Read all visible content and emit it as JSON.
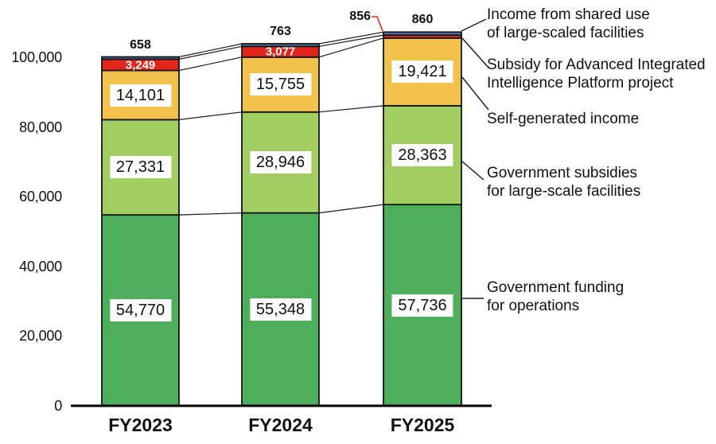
{
  "chart_data": {
    "type": "bar",
    "stacked": true,
    "title": "",
    "xlabel": "",
    "ylabel": "",
    "categories": [
      "FY2023",
      "FY2024",
      "FY2025"
    ],
    "series": [
      {
        "name": "Government funding for operations",
        "color": "#4fae5b",
        "values": [
          54770,
          55348,
          57736
        ]
      },
      {
        "name": "Government subsidies for large-scale facilities",
        "color": "#a2cd63",
        "values": [
          27331,
          28946,
          28363
        ]
      },
      {
        "name": "Self-generated income",
        "color": "#f0c14b",
        "values": [
          14101,
          15755,
          19421
        ]
      },
      {
        "name": "Subsidy for Advanced Integrated Intelligence Platform project",
        "color": "#e3261c",
        "values": [
          3249,
          3077,
          856
        ]
      },
      {
        "name": "Income from shared use of large-scaled facilities",
        "color": "#4b7db9",
        "values": [
          658,
          763,
          860
        ]
      }
    ],
    "totals": [
      100109,
      103889,
      107236
    ],
    "ylim": [
      0,
      110000
    ],
    "yticks": [
      {
        "label": "0",
        "value": 0
      },
      {
        "label": "20,000",
        "value": 20000
      },
      {
        "label": "40,000",
        "value": 40000
      },
      {
        "label": "60,000",
        "value": 60000
      },
      {
        "label": "80,000",
        "value": 80000
      },
      {
        "label": "100,000",
        "value": 100000
      }
    ],
    "grid": false,
    "legend_position": "right"
  },
  "legend": {
    "items": [
      {
        "label": "Income from shared use\nof large-scaled facilities"
      },
      {
        "label": "Subsidy for Advanced Integrated\nIntelligence Platform project"
      },
      {
        "label": "Self-generated income"
      },
      {
        "label": "Government subsidies\nfor large-scale facilities"
      },
      {
        "label": "Government funding\nfor operations"
      }
    ]
  },
  "colors": {
    "axis": "#000000",
    "connector": "#1a1a1a",
    "callout_line": "#e3261c",
    "text": "#111111",
    "label_box_bg": "#ffffff"
  }
}
